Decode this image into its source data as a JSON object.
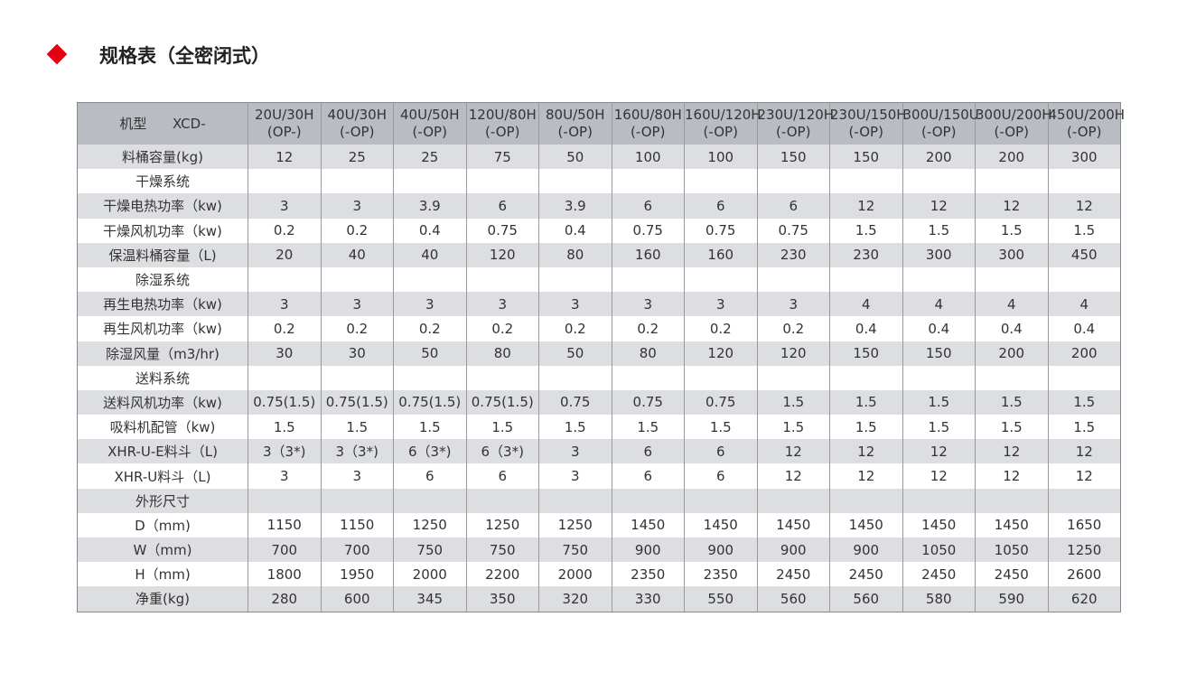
{
  "header": {
    "title": "规格表（全密闭式）"
  },
  "table": {
    "corner": [
      "机型",
      "XCD-"
    ],
    "columns": [
      [
        "20U/30H",
        "(OP-)"
      ],
      [
        "40U/30H",
        "(-OP)"
      ],
      [
        "40U/50H",
        "(-OP)"
      ],
      [
        "120U/80H",
        "(-OP)"
      ],
      [
        "80U/50H",
        "(-OP)"
      ],
      [
        "160U/80H",
        "(-OP)"
      ],
      [
        "160U/120H",
        "(-OP)"
      ],
      [
        "230U/120H",
        "(-OP)"
      ],
      [
        "230U/150H",
        "(-OP)"
      ],
      [
        "300U/150U",
        "(-OP)"
      ],
      [
        "300U/200H",
        "(-OP)"
      ],
      [
        "450U/200H",
        "(-OP)"
      ]
    ],
    "rows": [
      {
        "label": "料桶容量(kg)",
        "values": [
          "12",
          "25",
          "25",
          "75",
          "50",
          "100",
          "100",
          "150",
          "150",
          "200",
          "200",
          "300"
        ]
      },
      {
        "label": "干燥系统"
      },
      {
        "label": "干燥电热功率（kw)",
        "values": [
          "3",
          "3",
          "3.9",
          "6",
          "3.9",
          "6",
          "6",
          "6",
          "12",
          "12",
          "12",
          "12"
        ]
      },
      {
        "label": "干燥风机功率（kw)",
        "values": [
          "0.2",
          "0.2",
          "0.4",
          "0.75",
          "0.4",
          "0.75",
          "0.75",
          "0.75",
          "1.5",
          "1.5",
          "1.5",
          "1.5"
        ]
      },
      {
        "label": "保温料桶容量（L)",
        "values": [
          "20",
          "40",
          "40",
          "120",
          "80",
          "160",
          "160",
          "230",
          "230",
          "300",
          "300",
          "450"
        ]
      },
      {
        "label": "除湿系统"
      },
      {
        "label": "再生电热功率（kw)",
        "values": [
          "3",
          "3",
          "3",
          "3",
          "3",
          "3",
          "3",
          "3",
          "4",
          "4",
          "4",
          "4"
        ]
      },
      {
        "label": "再生风机功率（kw)",
        "values": [
          "0.2",
          "0.2",
          "0.2",
          "0.2",
          "0.2",
          "0.2",
          "0.2",
          "0.2",
          "0.4",
          "0.4",
          "0.4",
          "0.4"
        ]
      },
      {
        "label": "除湿风量（m3/hr)",
        "values": [
          "30",
          "30",
          "50",
          "80",
          "50",
          "80",
          "120",
          "120",
          "150",
          "150",
          "200",
          "200"
        ]
      },
      {
        "label": "送料系统"
      },
      {
        "label": "送料风机功率（kw)",
        "values": [
          "0.75(1.5)",
          "0.75(1.5)",
          "0.75(1.5)",
          "0.75(1.5)",
          "0.75",
          "0.75",
          "0.75",
          "1.5",
          "1.5",
          "1.5",
          "1.5",
          "1.5"
        ]
      },
      {
        "label": "吸料机配管（kw)",
        "values": [
          "1.5",
          "1.5",
          "1.5",
          "1.5",
          "1.5",
          "1.5",
          "1.5",
          "1.5",
          "1.5",
          "1.5",
          "1.5",
          "1.5"
        ]
      },
      {
        "label": "XHR-U-E料斗（L)",
        "values": [
          "3（3*)",
          "3（3*)",
          "6（3*)",
          "6（3*)",
          "3",
          "6",
          "6",
          "12",
          "12",
          "12",
          "12",
          "12"
        ]
      },
      {
        "label": "XHR-U料斗（L)",
        "values": [
          "3",
          "3",
          "6",
          "6",
          "3",
          "6",
          "6",
          "12",
          "12",
          "12",
          "12",
          "12"
        ]
      },
      {
        "label": "外形尺寸"
      },
      {
        "label": "D（mm)",
        "values": [
          "1150",
          "1150",
          "1250",
          "1250",
          "1250",
          "1450",
          "1450",
          "1450",
          "1450",
          "1450",
          "1450",
          "1650"
        ]
      },
      {
        "label": "W（mm)",
        "values": [
          "700",
          "700",
          "750",
          "750",
          "750",
          "900",
          "900",
          "900",
          "900",
          "1050",
          "1050",
          "1250"
        ]
      },
      {
        "label": "H（mm)",
        "values": [
          "1800",
          "1950",
          "2000",
          "2200",
          "2000",
          "2350",
          "2350",
          "2450",
          "2450",
          "2450",
          "2450",
          "2600"
        ]
      },
      {
        "label": "净重(kg)",
        "values": [
          "280",
          "600",
          "345",
          "350",
          "320",
          "330",
          "550",
          "560",
          "560",
          "580",
          "590",
          "620"
        ]
      }
    ]
  }
}
